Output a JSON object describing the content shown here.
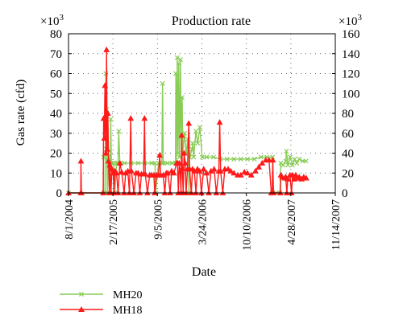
{
  "chart_data": {
    "type": "line",
    "title": "Production rate",
    "xlabel": "Date",
    "ylabel": "Gas rate (cfd)",
    "x_ticks": [
      "8/1/2004",
      "2/17/2005",
      "9/5/2005",
      "3/24/2006",
      "10/10/2006",
      "4/28/2007",
      "11/14/2007"
    ],
    "xlim": [
      "2004-08-01",
      "2007-11-14"
    ],
    "y_left": {
      "ticks": [
        0,
        10,
        20,
        30,
        40,
        50,
        60,
        70,
        80
      ],
      "ylim": [
        0,
        80
      ],
      "multiplier": "×10",
      "exponent": "3"
    },
    "y_right": {
      "ticks": [
        0,
        20,
        40,
        60,
        80,
        100,
        120,
        140,
        160
      ],
      "ylim": [
        0,
        160
      ],
      "multiplier": "×10",
      "exponent": "3"
    },
    "grid": "dotted",
    "legend_position": "bottom-left",
    "series": [
      {
        "name": "MH20",
        "axis": "left",
        "color": "#88cc55",
        "marker": "x",
        "points": [
          [
            "2004-08-01",
            0
          ],
          [
            "2005-01-05",
            0
          ],
          [
            "2005-01-06",
            18
          ],
          [
            "2005-01-07",
            0
          ],
          [
            "2005-01-15",
            0
          ],
          [
            "2005-01-16",
            60
          ],
          [
            "2005-01-18",
            22
          ],
          [
            "2005-01-20",
            42
          ],
          [
            "2005-01-22",
            16
          ],
          [
            "2005-01-24",
            0
          ],
          [
            "2005-01-27",
            18
          ],
          [
            "2005-02-05",
            15
          ],
          [
            "2005-02-07",
            37
          ],
          [
            "2005-02-10",
            15
          ],
          [
            "2005-02-20",
            15
          ],
          [
            "2005-02-25",
            0
          ],
          [
            "2005-03-05",
            15
          ],
          [
            "2005-03-12",
            15
          ],
          [
            "2005-03-15",
            31
          ],
          [
            "2005-03-20",
            15
          ],
          [
            "2005-04-10",
            15
          ],
          [
            "2005-05-10",
            15
          ],
          [
            "2005-06-10",
            15
          ],
          [
            "2005-07-10",
            15
          ],
          [
            "2005-08-10",
            15
          ],
          [
            "2005-08-25",
            15
          ],
          [
            "2005-08-28",
            0
          ],
          [
            "2005-09-10",
            15
          ],
          [
            "2005-09-25",
            15
          ],
          [
            "2005-09-28",
            55
          ],
          [
            "2005-10-01",
            15
          ],
          [
            "2005-10-20",
            15
          ],
          [
            "2005-11-10",
            15
          ],
          [
            "2005-11-25",
            15
          ],
          [
            "2005-11-27",
            60
          ],
          [
            "2005-11-29",
            15
          ],
          [
            "2005-12-03",
            68
          ],
          [
            "2005-12-06",
            20
          ],
          [
            "2005-12-10",
            65
          ],
          [
            "2005-12-13",
            18
          ],
          [
            "2005-12-18",
            67
          ],
          [
            "2005-12-20",
            28
          ],
          [
            "2005-12-25",
            48
          ],
          [
            "2005-12-28",
            20
          ],
          [
            "2006-01-05",
            30
          ],
          [
            "2006-01-12",
            20
          ],
          [
            "2006-01-20",
            27
          ],
          [
            "2006-01-25",
            0
          ],
          [
            "2006-01-28",
            18
          ],
          [
            "2006-02-08",
            22
          ],
          [
            "2006-02-10",
            25
          ],
          [
            "2006-02-15",
            18
          ],
          [
            "2006-02-25",
            31
          ],
          [
            "2006-03-05",
            25
          ],
          [
            "2006-03-15",
            33
          ],
          [
            "2006-03-25",
            18
          ],
          [
            "2006-04-15",
            18
          ],
          [
            "2006-05-15",
            18
          ],
          [
            "2006-06-15",
            17
          ],
          [
            "2006-07-15",
            17
          ],
          [
            "2006-08-15",
            17
          ],
          [
            "2006-09-15",
            17
          ],
          [
            "2006-10-15",
            17
          ],
          [
            "2006-11-15",
            17
          ],
          [
            "2006-12-15",
            18
          ],
          [
            "2007-01-10",
            18
          ],
          [
            "2007-02-05",
            18
          ],
          [
            "2007-02-07",
            0
          ],
          [
            "2007-02-20",
            0
          ],
          [
            "2007-03-10",
            0
          ],
          [
            "2007-03-14",
            15
          ],
          [
            "2007-03-25",
            14
          ],
          [
            "2007-04-05",
            16
          ],
          [
            "2007-04-08",
            21
          ],
          [
            "2007-04-15",
            14
          ],
          [
            "2007-04-25",
            18
          ],
          [
            "2007-05-05",
            14
          ],
          [
            "2007-05-15",
            17
          ],
          [
            "2007-05-25",
            15
          ],
          [
            "2007-06-05",
            17
          ],
          [
            "2007-06-20",
            16
          ],
          [
            "2007-07-05",
            16
          ]
        ]
      },
      {
        "name": "MH18",
        "axis": "right",
        "color": "#ff1a1a",
        "marker": "triangle",
        "points": [
          [
            "2004-08-01",
            0
          ],
          [
            "2004-09-25",
            0
          ],
          [
            "2004-09-26",
            32
          ],
          [
            "2004-09-28",
            0
          ],
          [
            "2005-01-04",
            0
          ],
          [
            "2005-01-06",
            75
          ],
          [
            "2005-01-09",
            55
          ],
          [
            "2005-01-12",
            108
          ],
          [
            "2005-01-16",
            40
          ],
          [
            "2005-01-19",
            144
          ],
          [
            "2005-01-22",
            44
          ],
          [
            "2005-01-25",
            80
          ],
          [
            "2005-01-28",
            32
          ],
          [
            "2005-02-01",
            0
          ],
          [
            "2005-02-03",
            28
          ],
          [
            "2005-02-08",
            0
          ],
          [
            "2005-02-12",
            24
          ],
          [
            "2005-02-18",
            20
          ],
          [
            "2005-02-22",
            0
          ],
          [
            "2005-02-26",
            22
          ],
          [
            "2005-03-05",
            20
          ],
          [
            "2005-03-12",
            0
          ],
          [
            "2005-03-20",
            30
          ],
          [
            "2005-03-28",
            21
          ],
          [
            "2005-04-08",
            0
          ],
          [
            "2005-04-15",
            20
          ],
          [
            "2005-04-25",
            22
          ],
          [
            "2005-05-02",
            0
          ],
          [
            "2005-05-08",
            75
          ],
          [
            "2005-05-11",
            22
          ],
          [
            "2005-05-22",
            0
          ],
          [
            "2005-06-01",
            20
          ],
          [
            "2005-06-10",
            20
          ],
          [
            "2005-06-18",
            0
          ],
          [
            "2005-06-25",
            19
          ],
          [
            "2005-07-05",
            19
          ],
          [
            "2005-07-09",
            75
          ],
          [
            "2005-07-12",
            19
          ],
          [
            "2005-07-22",
            0
          ],
          [
            "2005-08-01",
            18
          ],
          [
            "2005-08-10",
            18
          ],
          [
            "2005-08-20",
            18
          ],
          [
            "2005-08-24",
            0
          ],
          [
            "2005-09-01",
            18
          ],
          [
            "2005-09-10",
            18
          ],
          [
            "2005-09-15",
            38
          ],
          [
            "2005-09-20",
            18
          ],
          [
            "2005-10-01",
            18
          ],
          [
            "2005-10-08",
            0
          ],
          [
            "2005-10-15",
            20
          ],
          [
            "2005-10-22",
            20
          ],
          [
            "2005-11-01",
            0
          ],
          [
            "2005-11-08",
            22
          ],
          [
            "2005-11-18",
            20
          ],
          [
            "2005-12-01",
            30
          ],
          [
            "2005-12-04",
            30
          ],
          [
            "2005-12-08",
            0
          ],
          [
            "2005-12-12",
            30
          ],
          [
            "2005-12-16",
            22
          ],
          [
            "2005-12-20",
            0
          ],
          [
            "2005-12-23",
            58
          ],
          [
            "2005-12-26",
            25
          ],
          [
            "2005-12-30",
            0
          ],
          [
            "2006-01-03",
            40
          ],
          [
            "2006-01-08",
            30
          ],
          [
            "2006-01-12",
            0
          ],
          [
            "2006-01-18",
            24
          ],
          [
            "2006-01-24",
            70
          ],
          [
            "2006-01-28",
            24
          ],
          [
            "2006-02-04",
            0
          ],
          [
            "2006-02-10",
            24
          ],
          [
            "2006-02-18",
            22
          ],
          [
            "2006-02-25",
            0
          ],
          [
            "2006-03-04",
            24
          ],
          [
            "2006-03-14",
            22
          ],
          [
            "2006-03-22",
            0
          ],
          [
            "2006-04-01",
            24
          ],
          [
            "2006-04-14",
            20
          ],
          [
            "2006-04-24",
            0
          ],
          [
            "2006-05-04",
            22
          ],
          [
            "2006-05-18",
            24
          ],
          [
            "2006-05-28",
            0
          ],
          [
            "2006-06-08",
            22
          ],
          [
            "2006-06-12",
            71
          ],
          [
            "2006-06-16",
            22
          ],
          [
            "2006-06-26",
            0
          ],
          [
            "2006-07-05",
            24
          ],
          [
            "2006-07-20",
            24
          ],
          [
            "2006-08-01",
            22
          ],
          [
            "2006-08-15",
            20
          ],
          [
            "2006-09-01",
            18
          ],
          [
            "2006-09-15",
            18
          ],
          [
            "2006-10-01",
            21
          ],
          [
            "2006-10-15",
            20
          ],
          [
            "2006-11-01",
            18
          ],
          [
            "2006-11-20",
            22
          ],
          [
            "2006-12-05",
            26
          ],
          [
            "2006-12-20",
            30
          ],
          [
            "2007-01-05",
            33
          ],
          [
            "2007-01-20",
            33
          ],
          [
            "2007-01-30",
            0
          ],
          [
            "2007-02-03",
            0
          ],
          [
            "2007-02-06",
            33
          ],
          [
            "2007-02-09",
            0
          ],
          [
            "2007-03-12",
            0
          ],
          [
            "2007-03-14",
            18
          ],
          [
            "2007-03-20",
            16
          ],
          [
            "2007-04-01",
            15
          ],
          [
            "2007-04-05",
            16
          ],
          [
            "2007-04-10",
            0
          ],
          [
            "2007-04-14",
            14
          ],
          [
            "2007-04-24",
            18
          ],
          [
            "2007-05-01",
            0
          ],
          [
            "2007-05-06",
            18
          ],
          [
            "2007-05-14",
            14
          ],
          [
            "2007-05-20",
            18
          ],
          [
            "2007-05-28",
            15
          ],
          [
            "2007-06-05",
            16
          ],
          [
            "2007-06-15",
            14
          ],
          [
            "2007-06-25",
            16
          ],
          [
            "2007-07-06",
            15
          ]
        ]
      }
    ]
  }
}
